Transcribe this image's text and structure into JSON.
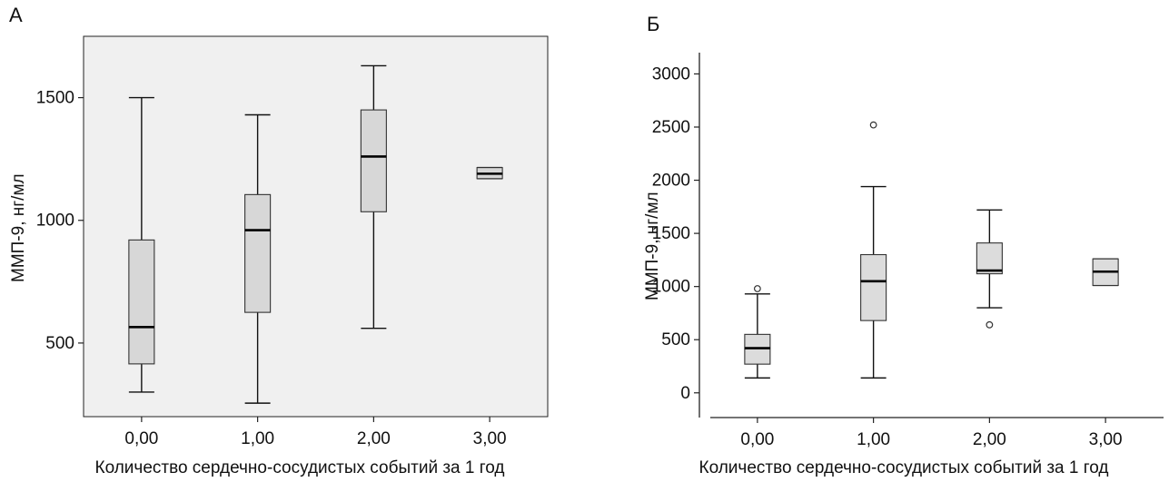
{
  "chart_data": [
    {
      "type": "box",
      "panel_label": "А",
      "xlabel": "Количество сердечно-сосудистых событий за 1 год",
      "ylabel": "ММП-9, нг/мл",
      "categories": [
        "0,00",
        "1,00",
        "2,00",
        "3,00"
      ],
      "yticks": [
        "500",
        "1000",
        "1500"
      ],
      "ytick_values": [
        500,
        1000,
        1500
      ],
      "ylim": [
        200,
        1750
      ],
      "boxes": [
        {
          "category": "0,00",
          "whisker_low": 300,
          "q1": 415,
          "median": 565,
          "q3": 920,
          "whisker_high": 1500
        },
        {
          "category": "1,00",
          "whisker_low": 255,
          "q1": 625,
          "median": 960,
          "q3": 1105,
          "whisker_high": 1430
        },
        {
          "category": "2,00",
          "whisker_low": 560,
          "q1": 1035,
          "median": 1260,
          "q3": 1450,
          "whisker_high": 1630
        },
        {
          "category": "3,00",
          "whisker_low": 1170,
          "q1": 1170,
          "median": 1190,
          "q3": 1215,
          "whisker_high": 1215
        }
      ],
      "plot_background": "#f0f0f0",
      "box_fill": "#d7d7d7"
    },
    {
      "type": "box",
      "panel_label": "Б",
      "xlabel": "Количество сердечно-сосудистых событий за 1 год",
      "ylabel": "ММП-9, нг/мл",
      "categories": [
        "0,00",
        "1,00",
        "2,00",
        "3,00"
      ],
      "yticks": [
        "0",
        "500",
        "1000",
        "1500",
        "2000",
        "2500",
        "3000"
      ],
      "ytick_values": [
        0,
        500,
        1000,
        1500,
        2000,
        2500,
        3000
      ],
      "ylim": [
        -130,
        3200
      ],
      "boxes": [
        {
          "category": "0,00",
          "whisker_low": 140,
          "q1": 270,
          "median": 420,
          "q3": 550,
          "whisker_high": 930,
          "outliers": [
            980
          ]
        },
        {
          "category": "1,00",
          "whisker_low": 140,
          "q1": 680,
          "median": 1050,
          "q3": 1300,
          "whisker_high": 1940,
          "outliers": [
            2520
          ]
        },
        {
          "category": "2,00",
          "whisker_low": 800,
          "q1": 1120,
          "median": 1150,
          "q3": 1410,
          "whisker_high": 1720,
          "outliers": [
            640
          ]
        },
        {
          "category": "3,00",
          "whisker_low": 1010,
          "q1": 1010,
          "median": 1140,
          "q3": 1260,
          "whisker_high": 1260
        }
      ],
      "plot_background": "#ffffff",
      "box_fill": "#dcdcdc"
    }
  ]
}
